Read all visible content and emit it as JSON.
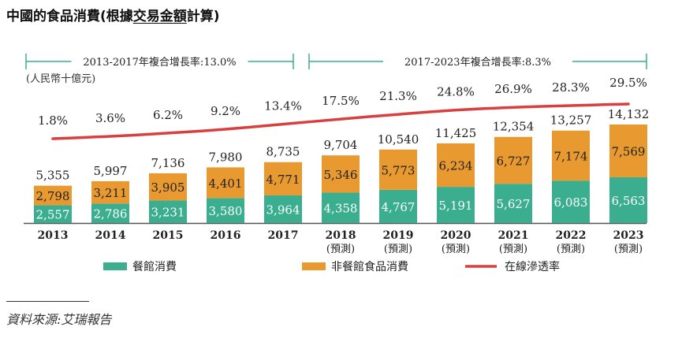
{
  "title_parts": {
    "before": "中國的食品消費(根據",
    "underlined": "交易金額",
    "after": "計算)"
  },
  "unit": "(人民幣十億元)",
  "source": "資料來源:艾瑞報告",
  "cagr": [
    {
      "label": "2013-2017年複合增長率:13.0%",
      "from": "2013",
      "to": "2017"
    },
    {
      "label": "2017-2023年複合增長率:8.3%",
      "from": "2018",
      "to": "2023"
    }
  ],
  "chart_data": {
    "type": "bar",
    "stacked": true,
    "categories": [
      "2013",
      "2014",
      "2015",
      "2016",
      "2017",
      "2018",
      "2019",
      "2020",
      "2021",
      "2022",
      "2023"
    ],
    "category_notes": [
      "",
      "",
      "",
      "",
      "",
      "(預測)",
      "(預測)",
      "(預測)",
      "(預測)",
      "(預測)",
      "(預測)"
    ],
    "series": [
      {
        "name": "餐館消費",
        "color": "#3aae8f",
        "values": [
          2557,
          2786,
          3231,
          3580,
          3964,
          4358,
          4767,
          5191,
          5627,
          6083,
          6563
        ]
      },
      {
        "name": "非餐館食品消費",
        "color": "#e8992f",
        "values": [
          2798,
          3211,
          3905,
          4401,
          4771,
          5346,
          5773,
          6234,
          6727,
          7174,
          7569
        ]
      }
    ],
    "totals": [
      5355,
      5997,
      7136,
      7980,
      8735,
      9704,
      10540,
      11425,
      12354,
      13257,
      14132
    ],
    "line": {
      "name": "在線滲透率",
      "color": "#d8403f",
      "values": [
        1.8,
        3.6,
        6.2,
        9.2,
        13.4,
        17.5,
        21.3,
        24.8,
        26.9,
        28.3,
        29.5
      ]
    },
    "colors": {
      "axis": "#555555",
      "cagr_line": "#3aae8f"
    }
  }
}
